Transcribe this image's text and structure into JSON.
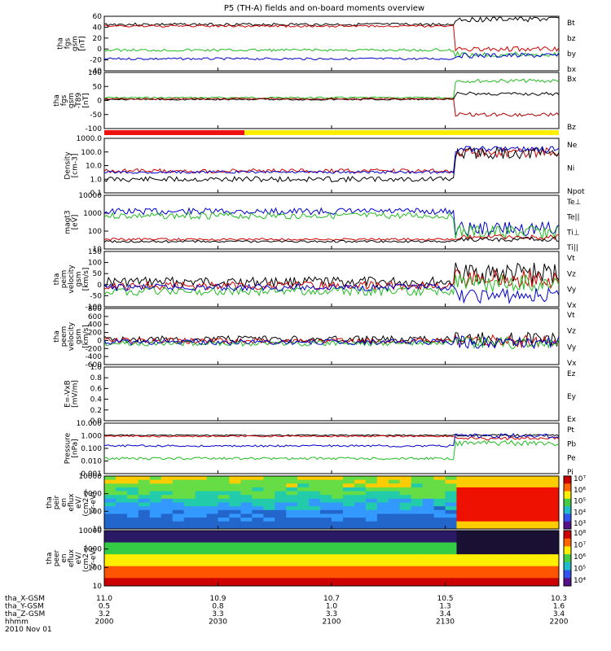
{
  "chart_data": {
    "type": "line",
    "title": "P5 (TH-A) fields and on-board moments overview",
    "date": "2010 Nov 01",
    "time_ticks": [
      "2000",
      "2030",
      "2100",
      "2130",
      "2200"
    ],
    "ephemeris": [
      {
        "label": "tha_X-GSM",
        "values": [
          "11.0",
          "10.9",
          "10.7",
          "10.5",
          "10.3"
        ]
      },
      {
        "label": "tha_Y-GSM",
        "values": [
          "0.5",
          "0.8",
          "1.0",
          "1.3",
          "1.6"
        ]
      },
      {
        "label": "tha_Z-GSM",
        "values": [
          "3.2",
          "3.3",
          "3.3",
          "3.4",
          "3.4"
        ]
      },
      {
        "label": "hhmm",
        "values": [
          "2000",
          "2030",
          "2100",
          "2130",
          "2200"
        ]
      }
    ],
    "panels": [
      {
        "ylabel": [
          "tha",
          "fgs",
          "gsm",
          "[nT]"
        ],
        "ylim": [
          -40,
          60
        ],
        "yticks": [
          "60",
          "40",
          "20",
          "0",
          "-20",
          "-40"
        ],
        "series": [
          {
            "name": "Bt",
            "color": "#000000"
          },
          {
            "name": "bz",
            "color": "#cc0000"
          },
          {
            "name": "by",
            "color": "#22bb22"
          },
          {
            "name": "bx",
            "color": "#0000cc"
          }
        ]
      },
      {
        "ylabel": [
          "tha",
          "fgs",
          "gsm",
          "-T89",
          "[nT]"
        ],
        "ylim": [
          -120,
          100
        ],
        "yticks": [
          "100",
          "50",
          "0",
          "-50",
          "-100"
        ],
        "series": [
          {
            "name": "Bx",
            "color": "#22bb22"
          },
          {
            "name": "Bz",
            "color": "#aa0000"
          }
        ]
      },
      {
        "ylabel": [
          "Density",
          "[cm-3]"
        ],
        "ylim": [
          0.1,
          1000
        ],
        "yticks": [
          "1000.0",
          "100.0",
          "10.0",
          "1.0",
          "0.1"
        ],
        "series": [
          {
            "name": "Ne",
            "color": "#cc0000"
          },
          {
            "name": "Ni",
            "color": "#000000"
          },
          {
            "name": "Npot",
            "color": "#0000cc"
          }
        ]
      },
      {
        "ylabel": [
          "magt3",
          "[eV]"
        ],
        "ylim": [
          10,
          10000
        ],
        "yticks": [
          "10000",
          "1000",
          "100",
          "10"
        ],
        "series": [
          {
            "name": "Te⊥",
            "color": "#cc0000"
          },
          {
            "name": "Te||",
            "color": "#000000"
          },
          {
            "name": "Ti⊥",
            "color": "#0000cc"
          },
          {
            "name": "Ti||",
            "color": "#22bb22"
          }
        ]
      },
      {
        "ylabel": [
          "tha",
          "peim",
          "velocity",
          "gsm",
          "[km/s]"
        ],
        "ylim": [
          -100,
          150
        ],
        "yticks": [
          "150",
          "100",
          "50",
          "0",
          "-50",
          "-100"
        ],
        "series": [
          {
            "name": "Vt",
            "color": "#000000"
          },
          {
            "name": "Vz",
            "color": "#cc0000"
          },
          {
            "name": "Vy",
            "color": "#22bb22"
          },
          {
            "name": "Vx",
            "color": "#0000cc"
          }
        ]
      },
      {
        "ylabel": [
          "tha",
          "peem",
          "velocity",
          "gsm",
          "[km/s]"
        ],
        "ylim": [
          -600,
          800
        ],
        "yticks": [
          "800",
          "600",
          "400",
          "200",
          "0",
          "-200",
          "-400",
          "-600"
        ],
        "series": [
          {
            "name": "Vt",
            "color": "#000000"
          },
          {
            "name": "Vz",
            "color": "#cc0000"
          },
          {
            "name": "Vy",
            "color": "#22bb22"
          },
          {
            "name": "Vx",
            "color": "#0000cc"
          }
        ]
      },
      {
        "ylabel": [
          "E=-VxB",
          "[mV/m]"
        ],
        "ylim": [
          0,
          1.0
        ],
        "yticks": [
          "1.0",
          "0.8",
          "0.6",
          "0.4",
          "0.2",
          "0.0"
        ],
        "series": [
          {
            "name": "Ez",
            "color": "#cc0000"
          },
          {
            "name": "Ey",
            "color": "#22bb22"
          },
          {
            "name": "Ex",
            "color": "#0000cc"
          }
        ]
      },
      {
        "ylabel": [
          "Pressure",
          "[nPa]"
        ],
        "ylim": [
          0.001,
          10
        ],
        "yticks": [
          "10.000",
          "1.000",
          "0.100",
          "0.010",
          "0.001"
        ],
        "series": [
          {
            "name": "Pt",
            "color": "#000000"
          },
          {
            "name": "Pb",
            "color": "#cc0000"
          },
          {
            "name": "Pe",
            "color": "#22bb22"
          },
          {
            "name": "Pi",
            "color": "#0000cc"
          }
        ]
      },
      {
        "ylabel": [
          "tha",
          "peir",
          "en",
          "eflux",
          "eV/",
          "(cm2-s-",
          "sr-eV)"
        ],
        "yticks": [
          "10000",
          "1000",
          "100",
          "10"
        ],
        "colorbar": [
          "10⁷",
          "10⁶",
          "10⁵",
          "10⁴",
          "10³"
        ]
      },
      {
        "ylabel": [
          "tha",
          "peer",
          "en",
          "eflux",
          "eV/",
          "(cm2-s-",
          "sr-eV)"
        ],
        "yticks": [
          "10000",
          "1000",
          "100",
          "10"
        ],
        "colorbar": [
          "10⁸",
          "10⁷",
          "10⁶",
          "10⁵",
          "10⁴"
        ]
      }
    ]
  }
}
